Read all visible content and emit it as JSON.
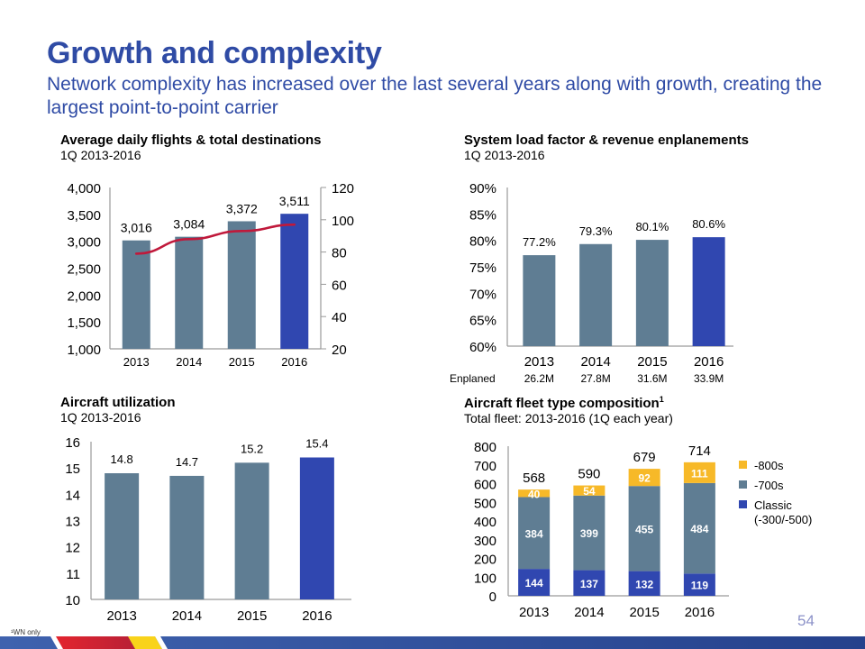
{
  "header": {
    "title": "Growth and complexity",
    "subtitle": "Network complexity has increased over the last several years along with growth, creating the largest point-to-point carrier"
  },
  "colors": {
    "title_blue": "#2F4BA5",
    "bar_gray_blue": "#5F7D93",
    "bar_highlight": "#3047B0",
    "line_red": "#C0193B",
    "yellow": "#F7B928",
    "page_number": "#8C92C8"
  },
  "panels": {
    "flights": {
      "title": "Average daily flights & total destinations",
      "subtitle": "1Q 2013-2016"
    },
    "load_factor": {
      "title": "System load factor & revenue enplanements",
      "subtitle": "1Q 2013-2016",
      "enplaned_label": "Enplaned"
    },
    "utilization": {
      "title": "Aircraft utilization",
      "subtitle": "1Q 2013-2016"
    },
    "fleet": {
      "title": "Aircraft fleet type composition",
      "title_sup": "1",
      "subtitle": "Total fleet: 2013-2016 (1Q each year)"
    }
  },
  "footer": {
    "footnote": "¹WN only",
    "page_number": "54"
  },
  "chart_data": [
    {
      "id": "flights",
      "type": "bar",
      "title": "Average daily flights & total destinations",
      "categories": [
        "2013",
        "2014",
        "2015",
        "2016"
      ],
      "series": [
        {
          "name": "Average daily flights",
          "type": "bar",
          "axis": "left",
          "values": [
            3016,
            3084,
            3372,
            3511
          ],
          "labels": [
            "3,016",
            "3,084",
            "3,372",
            "3,511"
          ]
        },
        {
          "name": "Total destinations",
          "type": "line",
          "axis": "right",
          "values": [
            79,
            88,
            93,
            97
          ]
        }
      ],
      "ylim": [
        1000,
        4000
      ],
      "yticks": [
        "1,000",
        "1,500",
        "2,000",
        "2,500",
        "3,000",
        "3,500",
        "4,000"
      ],
      "ytick_values": [
        1000,
        1500,
        2000,
        2500,
        3000,
        3500,
        4000
      ],
      "y2lim": [
        20,
        120
      ],
      "y2ticks": [
        "20",
        "40",
        "60",
        "80",
        "100",
        "120"
      ],
      "y2tick_values": [
        20,
        40,
        60,
        80,
        100,
        120
      ],
      "highlight_index": 3,
      "grid": false
    },
    {
      "id": "load_factor",
      "type": "bar",
      "title": "System load factor & revenue enplanements",
      "categories": [
        "2013",
        "2014",
        "2015",
        "2016"
      ],
      "values": [
        77.2,
        79.3,
        80.1,
        80.6
      ],
      "labels": [
        "77.2%",
        "79.3%",
        "80.1%",
        "80.6%"
      ],
      "enplaned": [
        "26.2M",
        "27.8M",
        "31.6M",
        "33.9M"
      ],
      "ylim": [
        60,
        90
      ],
      "yticks": [
        "60%",
        "65%",
        "70%",
        "75%",
        "80%",
        "85%",
        "90%"
      ],
      "ytick_values": [
        60,
        65,
        70,
        75,
        80,
        85,
        90
      ],
      "highlight_index": 3,
      "grid": false
    },
    {
      "id": "utilization",
      "type": "bar",
      "title": "Aircraft utilization",
      "categories": [
        "2013",
        "2014",
        "2015",
        "2016"
      ],
      "values": [
        14.8,
        14.7,
        15.2,
        15.4
      ],
      "labels": [
        "14.8",
        "14.7",
        "15.2",
        "15.4"
      ],
      "ylim": [
        10,
        16
      ],
      "yticks": [
        "10",
        "11",
        "12",
        "13",
        "14",
        "15",
        "16"
      ],
      "ytick_values": [
        10,
        11,
        12,
        13,
        14,
        15,
        16
      ],
      "highlight_index": 3,
      "grid": false
    },
    {
      "id": "fleet",
      "type": "bar",
      "stacked": true,
      "title": "Aircraft fleet type composition",
      "categories": [
        "2013",
        "2014",
        "2015",
        "2016"
      ],
      "series": [
        {
          "name": "Classic (-300/-500)",
          "legend": [
            "Classic",
            "(-300/-500)"
          ],
          "color": "#3047B0",
          "values": [
            144,
            137,
            132,
            119
          ]
        },
        {
          "name": "-700s",
          "legend": [
            "-700s"
          ],
          "color": "#5F7D93",
          "values": [
            384,
            399,
            455,
            484
          ]
        },
        {
          "name": "-800s",
          "legend": [
            "-800s"
          ],
          "color": "#F7B928",
          "values": [
            40,
            54,
            92,
            111
          ]
        }
      ],
      "totals": [
        568,
        590,
        679,
        714
      ],
      "ylim": [
        0,
        800
      ],
      "yticks": [
        "0",
        "100",
        "200",
        "300",
        "400",
        "500",
        "600",
        "700",
        "800"
      ],
      "ytick_values": [
        0,
        100,
        200,
        300,
        400,
        500,
        600,
        700,
        800
      ],
      "legend_position": "right",
      "grid": false
    }
  ]
}
